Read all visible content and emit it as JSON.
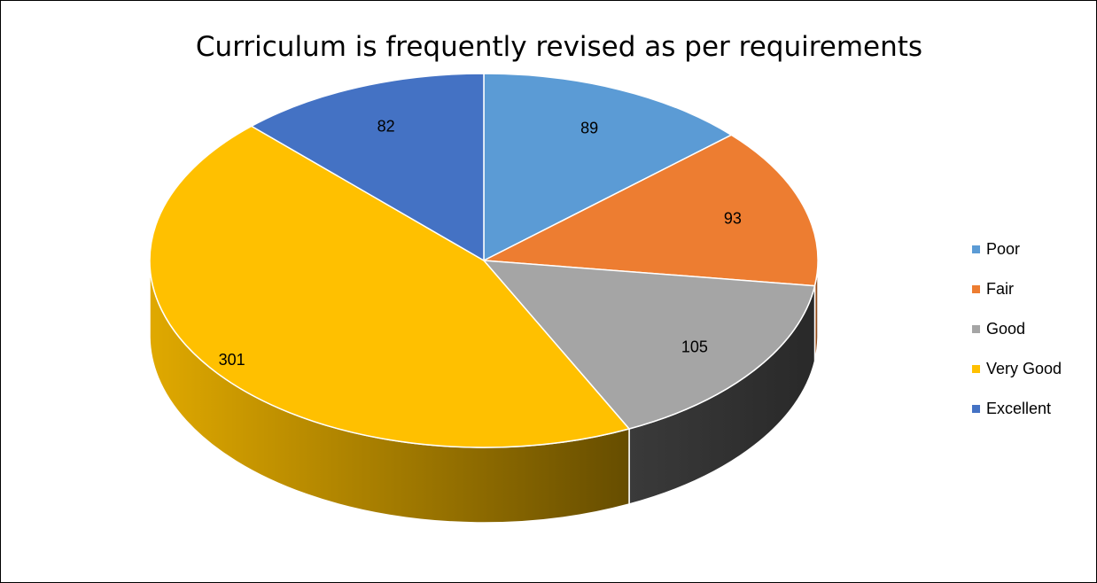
{
  "chart_data": {
    "type": "pie",
    "title": "Curriculum is frequently revised as per requirements",
    "categories": [
      "Poor",
      "Fair",
      "Good",
      "Very Good",
      "Excellent"
    ],
    "values": [
      89,
      93,
      105,
      301,
      82
    ],
    "colors": [
      "#5B9BD5",
      "#ED7D31",
      "#A5A5A5",
      "#FFC000",
      "#4472C4"
    ],
    "data_labels": [
      "89",
      "93",
      "105",
      "301",
      "82"
    ],
    "style": "3d",
    "legend_position": "right"
  }
}
